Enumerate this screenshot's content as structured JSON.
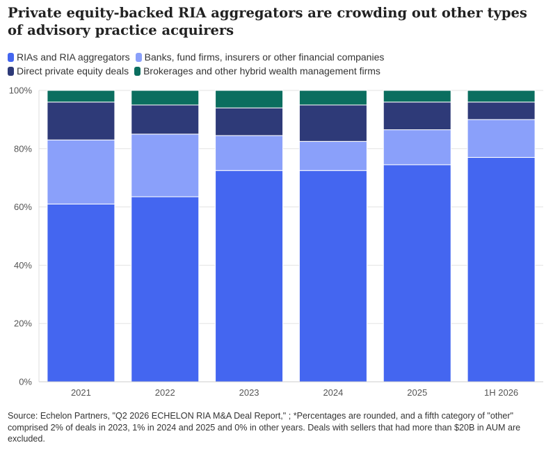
{
  "title": "Private equity-backed RIA aggregators are crowding out other types of advisory practice acquirers",
  "legend": [
    {
      "label": "RIAs and RIA aggregators",
      "color": "#4466f0"
    },
    {
      "label": "Banks, fund firms, insurers or other financial companies",
      "color": "#8aa0fa"
    },
    {
      "label": "Direct private equity deals",
      "color": "#2e3a78"
    },
    {
      "label": "Brokerages and other hybrid wealth management firms",
      "color": "#0b6e5f"
    }
  ],
  "source": "Source: Echelon Partners, \"Q2 2026 ECHELON RIA M&A Deal Report,\" ; *Percentages are rounded, and a fifth category of \"other\" comprised 2% of deals in 2023, 1% in 2024 and 2025 and 0% in other years. Deals with sellers that had more than $20B in AUM are excluded.",
  "chart_data": {
    "type": "bar",
    "stacked": true,
    "categories": [
      "2021",
      "2022",
      "2023",
      "2024",
      "2025",
      "1H 2026"
    ],
    "series": [
      {
        "name": "RIAs and RIA aggregators",
        "color": "#4466f0",
        "values": [
          61,
          63.5,
          72.5,
          72.5,
          74.5,
          77
        ]
      },
      {
        "name": "Banks, fund firms, insurers or other financial companies",
        "color": "#8aa0fa",
        "values": [
          22,
          21.5,
          12,
          10,
          12,
          13
        ]
      },
      {
        "name": "Direct private equity deals",
        "color": "#2e3a78",
        "values": [
          13,
          10,
          9.5,
          12.5,
          9.5,
          6
        ]
      },
      {
        "name": "Brokerages and other hybrid wealth management firms",
        "color": "#0b6e5f",
        "values": [
          4,
          5,
          6,
          5,
          4,
          4
        ]
      }
    ],
    "ylim": [
      0,
      100
    ],
    "yticks": [
      "0%",
      "20%",
      "40%",
      "60%",
      "80%",
      "100%"
    ],
    "grid": true
  }
}
